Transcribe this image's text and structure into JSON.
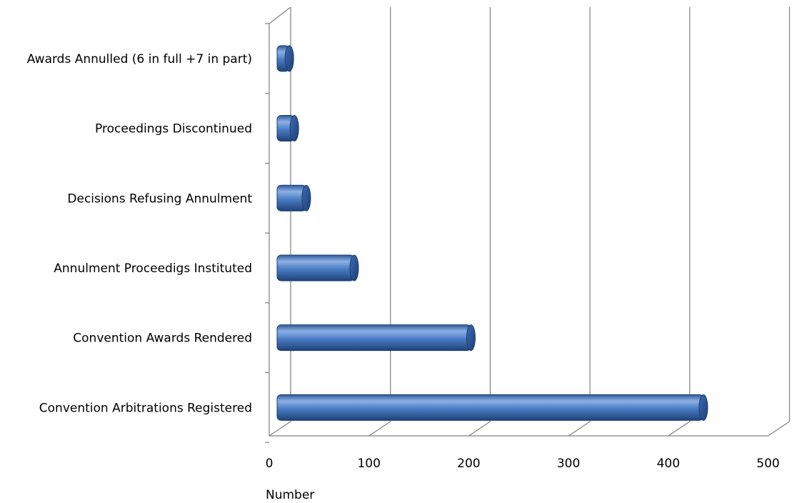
{
  "chart_data": {
    "type": "bar",
    "orientation": "horizontal",
    "style": "3d-cylinder",
    "categories": [
      "Convention Arbitrations Registered",
      "Convention Awards Rendered",
      "Annulment Proceedigs Instituted",
      "Decisions Refusing Annulment",
      "Proceedings Discontinued",
      "Awards Annulled (6 in full +7 in part)"
    ],
    "values": [
      428,
      195,
      78,
      30,
      18,
      13
    ],
    "xlabel": "Number",
    "ylabel": "",
    "xlim": [
      0,
      500
    ],
    "xticks": [
      "0",
      "100",
      "200",
      "300",
      "400",
      "500"
    ],
    "grid": true,
    "colors": {
      "bar": "#4a7cc4",
      "bar_light": "#8fb2e6",
      "bar_dark": "#24497f",
      "grid": "#808080"
    }
  }
}
